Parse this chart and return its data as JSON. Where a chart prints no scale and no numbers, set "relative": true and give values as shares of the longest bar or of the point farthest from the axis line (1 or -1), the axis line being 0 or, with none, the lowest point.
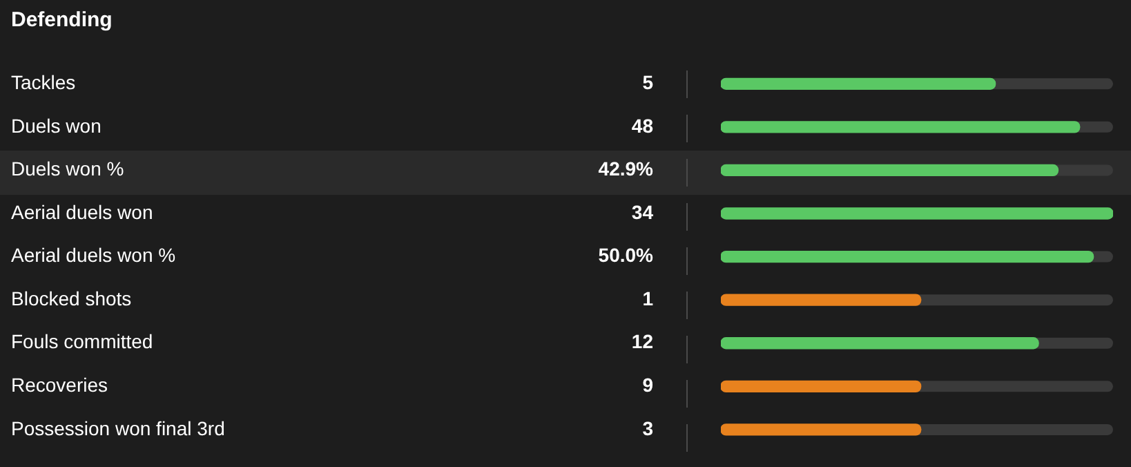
{
  "chart_data": {
    "type": "bar",
    "orientation": "horizontal",
    "relative": true,
    "title": "Defending",
    "categories": [
      "Tackles",
      "Duels won",
      "Duels won %",
      "Aerial duels won",
      "Aerial duels won %",
      "Blocked shots",
      "Fouls committed",
      "Recoveries",
      "Possession won final 3rd"
    ],
    "values": [
      0.7,
      0.915,
      0.86,
      1,
      0.95,
      0.51,
      0.81,
      0.51,
      0.51
    ],
    "annotations": [
      "5",
      "48",
      "42.9%",
      "34",
      "50.0%",
      "1",
      "12",
      "9",
      "3"
    ],
    "colors": [
      "#5ac864",
      "#5ac864",
      "#5ac864",
      "#5ac864",
      "#5ac864",
      "#e8821e",
      "#5ac864",
      "#e8821e",
      "#e8821e"
    ],
    "legend": false
  }
}
